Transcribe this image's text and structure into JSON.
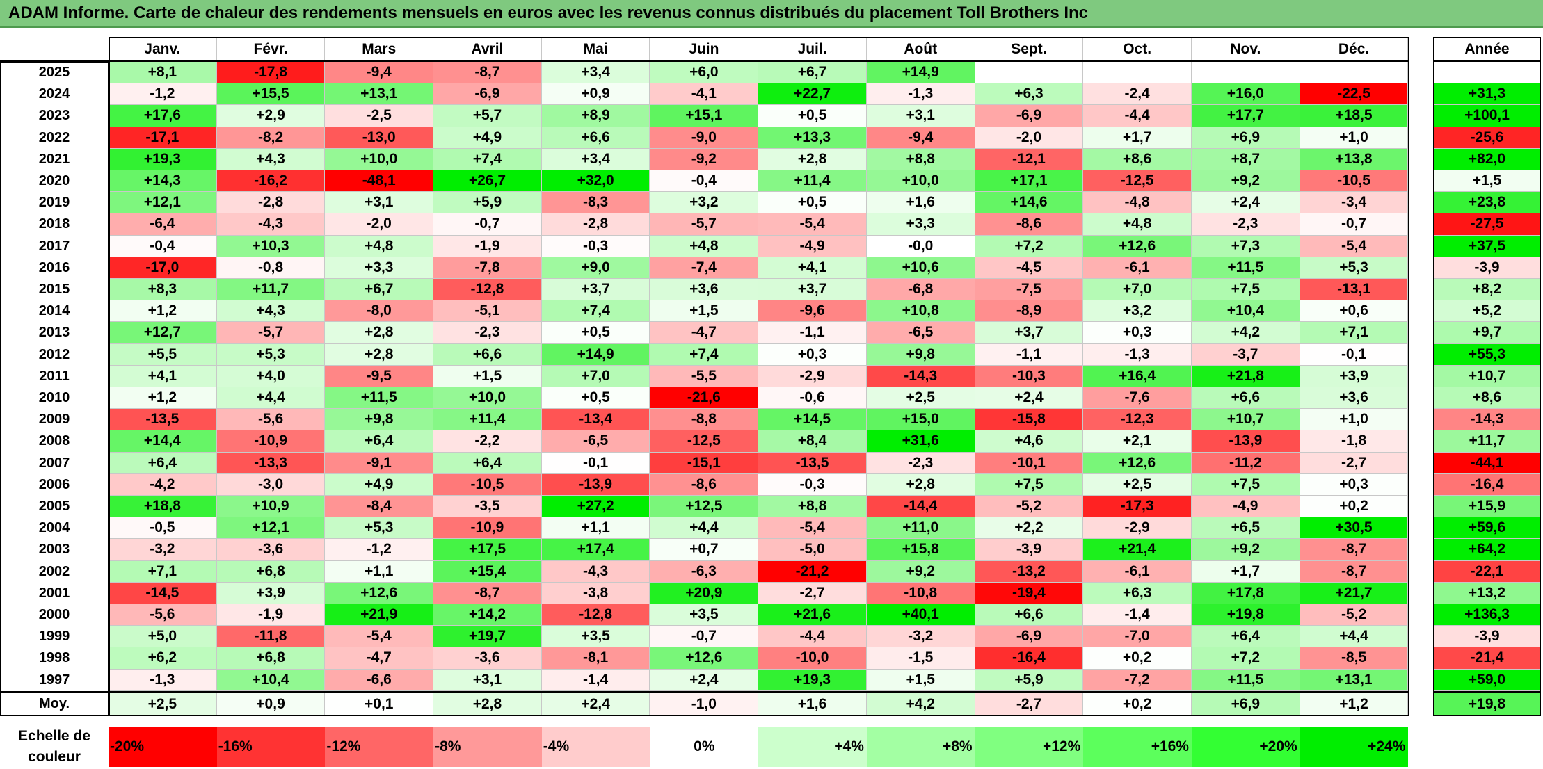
{
  "title": "ADAM Informe. Carte de chaleur des rendements mensuels en euros avec les revenus connus distribués du placement Toll Brothers Inc",
  "chart_data": {
    "type": "heatmap",
    "months": [
      "Janv.",
      "Févr.",
      "Mars",
      "Avril",
      "Mai",
      "Juin",
      "Juil.",
      "Août",
      "Sept.",
      "Oct.",
      "Nov.",
      "Déc."
    ],
    "year_header": "Année",
    "avg_label": "Moy.",
    "rows": [
      {
        "year": "2025",
        "values": [
          "+8,1",
          "-17,8",
          "-9,4",
          "-8,7",
          "+3,4",
          "+6,0",
          "+6,7",
          "+14,9",
          "",
          "",
          "",
          ""
        ],
        "annual": ""
      },
      {
        "year": "2024",
        "values": [
          "-1,2",
          "+15,5",
          "+13,1",
          "-6,9",
          "+0,9",
          "-4,1",
          "+22,7",
          "-1,3",
          "+6,3",
          "-2,4",
          "+16,0",
          "-22,5"
        ],
        "annual": "+31,3"
      },
      {
        "year": "2023",
        "values": [
          "+17,6",
          "+2,9",
          "-2,5",
          "+5,7",
          "+8,9",
          "+15,1",
          "+0,5",
          "+3,1",
          "-6,9",
          "-4,4",
          "+17,7",
          "+18,5"
        ],
        "annual": "+100,1"
      },
      {
        "year": "2022",
        "values": [
          "-17,1",
          "-8,2",
          "-13,0",
          "+4,9",
          "+6,6",
          "-9,0",
          "+13,3",
          "-9,4",
          "-2,0",
          "+1,7",
          "+6,9",
          "+1,0"
        ],
        "annual": "-25,6"
      },
      {
        "year": "2021",
        "values": [
          "+19,3",
          "+4,3",
          "+10,0",
          "+7,4",
          "+3,4",
          "-9,2",
          "+2,8",
          "+8,8",
          "-12,1",
          "+8,6",
          "+8,7",
          "+13,8"
        ],
        "annual": "+82,0"
      },
      {
        "year": "2020",
        "values": [
          "+14,3",
          "-16,2",
          "-48,1",
          "+26,7",
          "+32,0",
          "-0,4",
          "+11,4",
          "+10,0",
          "+17,1",
          "-12,5",
          "+9,2",
          "-10,5"
        ],
        "annual": "+1,5"
      },
      {
        "year": "2019",
        "values": [
          "+12,1",
          "-2,8",
          "+3,1",
          "+5,9",
          "-8,3",
          "+3,2",
          "+0,5",
          "+1,6",
          "+14,6",
          "-4,8",
          "+2,4",
          "-3,4"
        ],
        "annual": "+23,8"
      },
      {
        "year": "2018",
        "values": [
          "-6,4",
          "-4,3",
          "-2,0",
          "-0,7",
          "-2,8",
          "-5,7",
          "-5,4",
          "+3,3",
          "-8,6",
          "+4,8",
          "-2,3",
          "-0,7"
        ],
        "annual": "-27,5"
      },
      {
        "year": "2017",
        "values": [
          "-0,4",
          "+10,3",
          "+4,8",
          "-1,9",
          "-0,3",
          "+4,8",
          "-4,9",
          "-0,0",
          "+7,2",
          "+12,6",
          "+7,3",
          "-5,4"
        ],
        "annual": "+37,5"
      },
      {
        "year": "2016",
        "values": [
          "-17,0",
          "-0,8",
          "+3,3",
          "-7,8",
          "+9,0",
          "-7,4",
          "+4,1",
          "+10,6",
          "-4,5",
          "-6,1",
          "+11,5",
          "+5,3"
        ],
        "annual": "-3,9"
      },
      {
        "year": "2015",
        "values": [
          "+8,3",
          "+11,7",
          "+6,7",
          "-12,8",
          "+3,7",
          "+3,6",
          "+3,7",
          "-6,8",
          "-7,5",
          "+7,0",
          "+7,5",
          "-13,1"
        ],
        "annual": "+8,2"
      },
      {
        "year": "2014",
        "values": [
          "+1,2",
          "+4,3",
          "-8,0",
          "-5,1",
          "+7,4",
          "+1,5",
          "-9,6",
          "+10,8",
          "-8,9",
          "+3,2",
          "+10,4",
          "+0,6"
        ],
        "annual": "+5,2"
      },
      {
        "year": "2013",
        "values": [
          "+12,7",
          "-5,7",
          "+2,8",
          "-2,3",
          "+0,5",
          "-4,7",
          "-1,1",
          "-6,5",
          "+3,7",
          "+0,3",
          "+4,2",
          "+7,1"
        ],
        "annual": "+9,7"
      },
      {
        "year": "2012",
        "values": [
          "+5,5",
          "+5,3",
          "+2,8",
          "+6,6",
          "+14,9",
          "+7,4",
          "+0,3",
          "+9,8",
          "-1,1",
          "-1,3",
          "-3,7",
          "-0,1"
        ],
        "annual": "+55,3"
      },
      {
        "year": "2011",
        "values": [
          "+4,1",
          "+4,0",
          "-9,5",
          "+1,5",
          "+7,0",
          "-5,5",
          "-2,9",
          "-14,3",
          "-10,3",
          "+16,4",
          "+21,8",
          "+3,9"
        ],
        "annual": "+10,7"
      },
      {
        "year": "2010",
        "values": [
          "+1,2",
          "+4,4",
          "+11,5",
          "+10,0",
          "+0,5",
          "-21,6",
          "-0,6",
          "+2,5",
          "+2,4",
          "-7,6",
          "+6,6",
          "+3,6"
        ],
        "annual": "+8,6"
      },
      {
        "year": "2009",
        "values": [
          "-13,5",
          "-5,6",
          "+9,8",
          "+11,4",
          "-13,4",
          "-8,8",
          "+14,5",
          "+15,0",
          "-15,8",
          "-12,3",
          "+10,7",
          "+1,0"
        ],
        "annual": "-14,3"
      },
      {
        "year": "2008",
        "values": [
          "+14,4",
          "-10,9",
          "+6,4",
          "-2,2",
          "-6,5",
          "-12,5",
          "+8,4",
          "+31,6",
          "+4,6",
          "+2,1",
          "-13,9",
          "-1,8"
        ],
        "annual": "+11,7"
      },
      {
        "year": "2007",
        "values": [
          "+6,4",
          "-13,3",
          "-9,1",
          "+6,4",
          "-0,1",
          "-15,1",
          "-13,5",
          "-2,3",
          "-10,1",
          "+12,6",
          "-11,2",
          "-2,7"
        ],
        "annual": "-44,1"
      },
      {
        "year": "2006",
        "values": [
          "-4,2",
          "-3,0",
          "+4,9",
          "-10,5",
          "-13,9",
          "-8,6",
          "-0,3",
          "+2,8",
          "+7,5",
          "+2,5",
          "+7,5",
          "+0,3"
        ],
        "annual": "-16,4"
      },
      {
        "year": "2005",
        "values": [
          "+18,8",
          "+10,9",
          "-8,4",
          "-3,5",
          "+27,2",
          "+12,5",
          "+8,8",
          "-14,4",
          "-5,2",
          "-17,3",
          "-4,9",
          "+0,2"
        ],
        "annual": "+15,9"
      },
      {
        "year": "2004",
        "values": [
          "-0,5",
          "+12,1",
          "+5,3",
          "-10,9",
          "+1,1",
          "+4,4",
          "-5,4",
          "+11,0",
          "+2,2",
          "-2,9",
          "+6,5",
          "+30,5"
        ],
        "annual": "+59,6"
      },
      {
        "year": "2003",
        "values": [
          "-3,2",
          "-3,6",
          "-1,2",
          "+17,5",
          "+17,4",
          "+0,7",
          "-5,0",
          "+15,8",
          "-3,9",
          "+21,4",
          "+9,2",
          "-8,7"
        ],
        "annual": "+64,2"
      },
      {
        "year": "2002",
        "values": [
          "+7,1",
          "+6,8",
          "+1,1",
          "+15,4",
          "-4,3",
          "-6,3",
          "-21,2",
          "+9,2",
          "-13,2",
          "-6,1",
          "+1,7",
          "-8,7"
        ],
        "annual": "-22,1"
      },
      {
        "year": "2001",
        "values": [
          "-14,5",
          "+3,9",
          "+12,6",
          "-8,7",
          "-3,8",
          "+20,9",
          "-2,7",
          "-10,8",
          "-19,4",
          "+6,3",
          "+17,8",
          "+21,7"
        ],
        "annual": "+13,2"
      },
      {
        "year": "2000",
        "values": [
          "-5,6",
          "-1,9",
          "+21,9",
          "+14,2",
          "-12,8",
          "+3,5",
          "+21,6",
          "+40,1",
          "+6,6",
          "-1,4",
          "+19,8",
          "-5,2"
        ],
        "annual": "+136,3"
      },
      {
        "year": "1999",
        "values": [
          "+5,0",
          "-11,8",
          "-5,4",
          "+19,7",
          "+3,5",
          "-0,7",
          "-4,4",
          "-3,2",
          "-6,9",
          "-7,0",
          "+6,4",
          "+4,4"
        ],
        "annual": "-3,9"
      },
      {
        "year": "1998",
        "values": [
          "+6,2",
          "+6,8",
          "-4,7",
          "-3,6",
          "-8,1",
          "+12,6",
          "-10,0",
          "-1,5",
          "-16,4",
          "+0,2",
          "+7,2",
          "-8,5"
        ],
        "annual": "-21,4"
      },
      {
        "year": "1997",
        "values": [
          "-1,3",
          "+10,4",
          "-6,6",
          "+3,1",
          "-1,4",
          "+2,4",
          "+19,3",
          "+1,5",
          "+5,9",
          "-7,2",
          "+11,5",
          "+13,1"
        ],
        "annual": "+59,0"
      }
    ],
    "average": {
      "values": [
        "+2,5",
        "+0,9",
        "+0,1",
        "+2,8",
        "+2,4",
        "-1,0",
        "+1,6",
        "+4,2",
        "-2,7",
        "+0,2",
        "+6,9",
        "+1,2"
      ],
      "annual": "+19,8"
    },
    "scale_label": "Echelle de couleur",
    "scale": [
      {
        "label": "-20%",
        "color": "#ff0000"
      },
      {
        "label": "-16%",
        "color": "#ff3333"
      },
      {
        "label": "-12%",
        "color": "#ff6666"
      },
      {
        "label": "-8%",
        "color": "#ff9999"
      },
      {
        "label": "-4%",
        "color": "#ffcccc"
      },
      {
        "label": "0%",
        "color": "#ffffff"
      },
      {
        "label": "+4%",
        "color": "#ccffcc"
      },
      {
        "label": "+8%",
        "color": "#a3ffa3"
      },
      {
        "label": "+12%",
        "color": "#80ff80"
      },
      {
        "label": "+16%",
        "color": "#5cff5c"
      },
      {
        "label": "+20%",
        "color": "#33ff33"
      },
      {
        "label": "+24%",
        "color": "#00ee00"
      }
    ],
    "colors": {
      "title_bg": "#7fc97f",
      "grid": "#c8c8c8"
    }
  }
}
